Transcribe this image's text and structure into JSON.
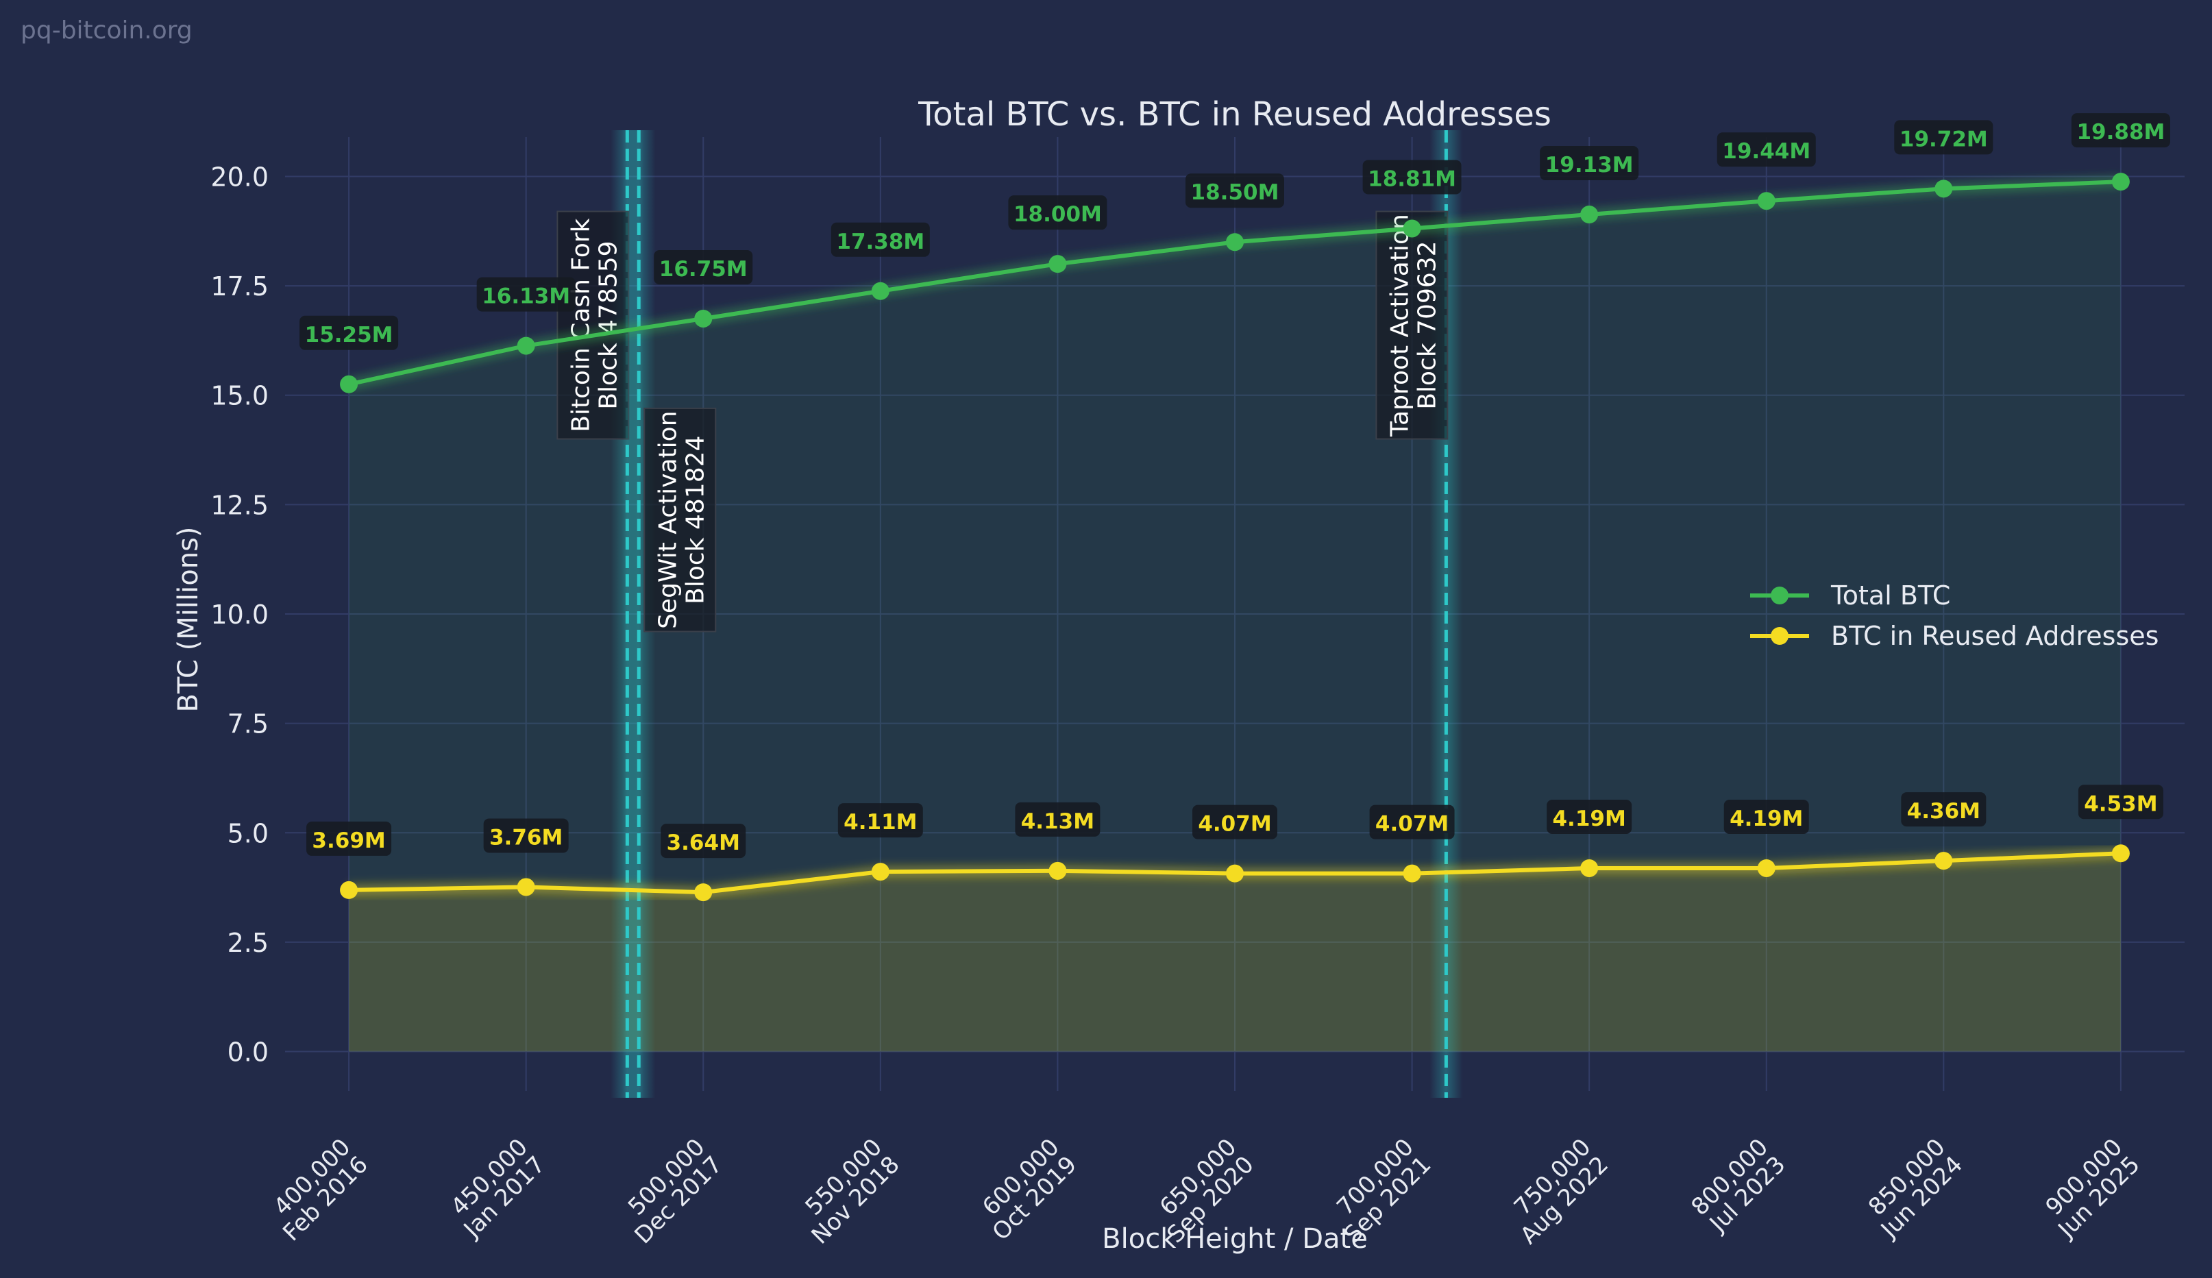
{
  "watermark": "pq-bitcoin.org",
  "colors": {
    "background": "#222a48",
    "grid": "#323c66",
    "total": "#3dba52",
    "reused": "#f4dc22",
    "event_line": "#2ec9c9",
    "text": "#e8ebf2",
    "label_box": "#161b22"
  },
  "chart_data": {
    "type": "line",
    "title": "Total BTC vs. BTC in Reused Addresses",
    "xlabel": "Block Height / Date",
    "ylabel": "BTC (Millions)",
    "ylim": [
      -0.9,
      20.9
    ],
    "yticks": [
      "0.0",
      "2.5",
      "5.0",
      "7.5",
      "10.0",
      "12.5",
      "15.0",
      "17.5",
      "20.0"
    ],
    "ytick_values": [
      0,
      2.5,
      5,
      7.5,
      10,
      12.5,
      15,
      17.5,
      20
    ],
    "xlim": [
      382000,
      918000
    ],
    "x": [
      400000,
      450000,
      500000,
      550000,
      600000,
      650000,
      700000,
      750000,
      800000,
      850000,
      900000
    ],
    "xtick_labels": [
      [
        "400,000",
        "Feb 2016"
      ],
      [
        "450,000",
        "Jan 2017"
      ],
      [
        "500,000",
        "Dec 2017"
      ],
      [
        "550,000",
        "Nov 2018"
      ],
      [
        "600,000",
        "Oct 2019"
      ],
      [
        "650,000",
        "Sep 2020"
      ],
      [
        "700,000",
        "Sep 2021"
      ],
      [
        "750,000",
        "Aug 2022"
      ],
      [
        "800,000",
        "Jul 2023"
      ],
      [
        "850,000",
        "Jun 2024"
      ],
      [
        "900,000",
        "Jun 2025"
      ]
    ],
    "series": [
      {
        "name": "Total BTC",
        "color": "#3dba52",
        "values": [
          15.25,
          16.13,
          16.75,
          17.38,
          18.0,
          18.5,
          18.81,
          19.13,
          19.44,
          19.72,
          19.88
        ],
        "labels": [
          "15.25M",
          "16.13M",
          "16.75M",
          "17.38M",
          "18.00M",
          "18.50M",
          "18.81M",
          "19.13M",
          "19.44M",
          "19.72M",
          "19.88M"
        ]
      },
      {
        "name": "BTC in Reused Addresses",
        "color": "#f4dc22",
        "values": [
          3.69,
          3.76,
          3.64,
          4.11,
          4.13,
          4.07,
          4.07,
          4.19,
          4.19,
          4.36,
          4.53
        ],
        "labels": [
          "3.69M",
          "3.76M",
          "3.64M",
          "4.11M",
          "4.13M",
          "4.07M",
          "4.07M",
          "4.19M",
          "4.19M",
          "4.36M",
          "4.53M"
        ]
      }
    ],
    "events": [
      {
        "block": 478559,
        "lines": [
          "Bitcoin Cash Fork",
          "Block 478559"
        ],
        "label_top": 19.2,
        "label_bottom": 14.0
      },
      {
        "block": 481824,
        "lines": [
          "SegWit Activation",
          "Block 481824"
        ],
        "label_top": 14.7,
        "label_bottom": 9.6
      },
      {
        "block": 709632,
        "lines": [
          "Taproot Activation",
          "Block 709632"
        ],
        "label_top": 19.2,
        "label_bottom": 14.0
      }
    ],
    "legend_placement": "center-right",
    "grid": true
  }
}
